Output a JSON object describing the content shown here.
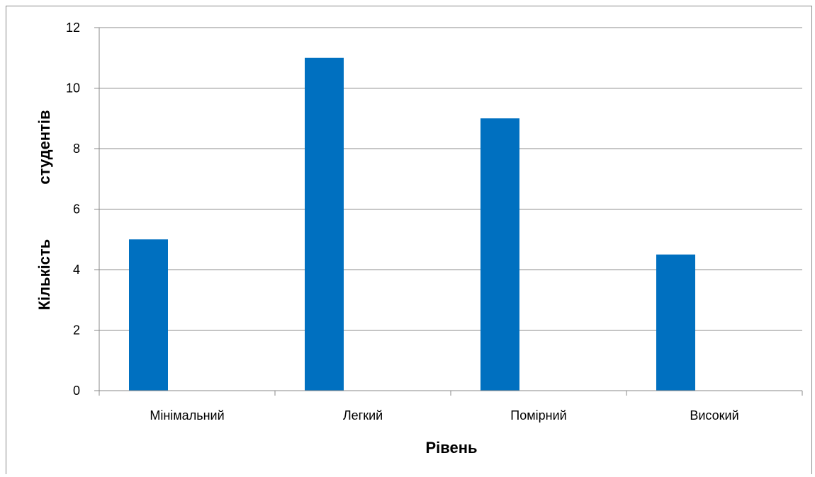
{
  "chart_data": {
    "type": "bar",
    "categories": [
      "Мінімальний",
      "Легкий",
      "Помірний",
      "Високий"
    ],
    "values": [
      5,
      11,
      9,
      4.5
    ],
    "xlabel": "Рівень",
    "ylabel": "Кількість студентів",
    "ylim": [
      0,
      12
    ],
    "yticks": [
      0,
      2,
      4,
      6,
      8,
      10,
      12
    ],
    "grid": true,
    "legend": "none",
    "bar_color": "#0070C0"
  }
}
